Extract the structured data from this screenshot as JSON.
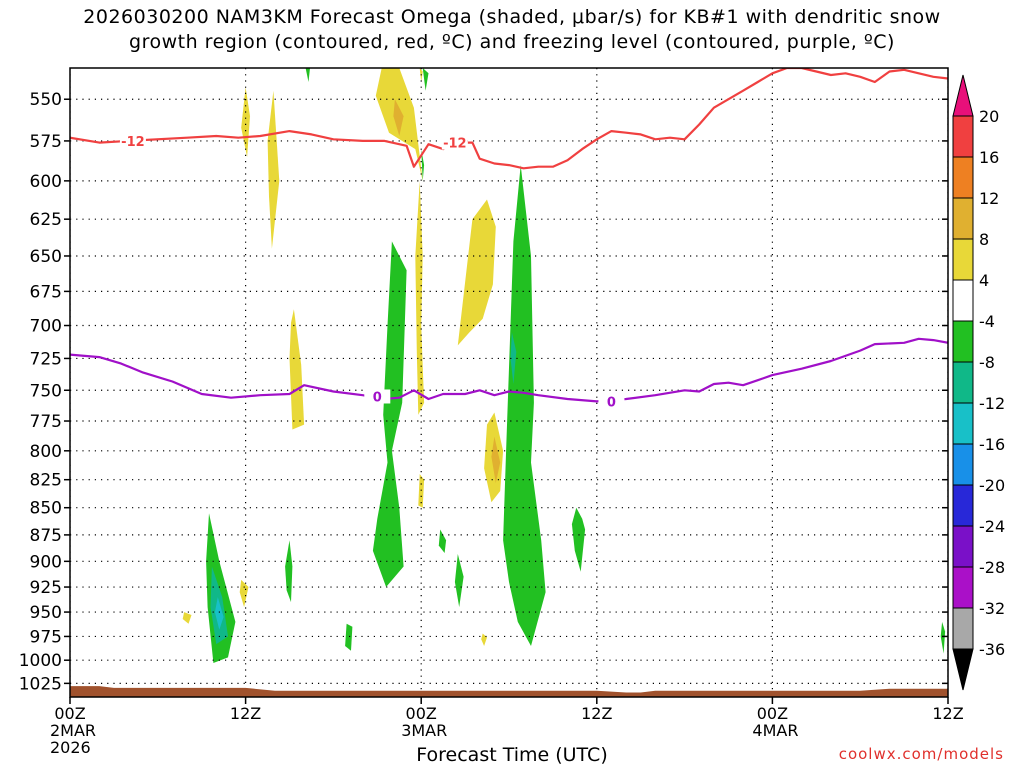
{
  "title": {
    "line1": "2026030200 NAM3KM Forecast Omega (shaded, μbar/s) for KB#1 with dendritic snow",
    "line2": "growth region (contoured, red, ºC) and freezing level (contoured, purple, ºC)"
  },
  "credit": "coolwx.com/models",
  "chart_data": {
    "type": "heatmap",
    "xlabel": "Forecast Time (UTC)",
    "x_unit": "forecast hours from 2026-03-02 00Z",
    "xlim": [
      0,
      60
    ],
    "x_ticks": [
      {
        "hour": 0,
        "labels": [
          "00Z",
          "2MAR",
          "2026"
        ]
      },
      {
        "hour": 12,
        "labels": [
          "12Z"
        ]
      },
      {
        "hour": 24,
        "labels": [
          "00Z",
          "3MAR"
        ]
      },
      {
        "hour": 36,
        "labels": [
          "12Z"
        ]
      },
      {
        "hour": 48,
        "labels": [
          "00Z",
          "4MAR"
        ]
      },
      {
        "hour": 60,
        "labels": [
          "12Z"
        ]
      }
    ],
    "ylabel": "",
    "y_unit": "hPa",
    "ylim": [
      1040,
      532
    ],
    "y_scale": "log-pressure",
    "y_ticks": [
      550,
      575,
      600,
      625,
      650,
      675,
      700,
      725,
      750,
      775,
      800,
      825,
      850,
      875,
      900,
      925,
      950,
      975,
      1000,
      1025
    ],
    "grid": true,
    "colorbar": {
      "position": "right",
      "levels": [
        20,
        16,
        12,
        8,
        4,
        -4,
        -8,
        -12,
        -16,
        -20,
        -24,
        -28,
        -32,
        -36
      ],
      "colors": [
        "#e8107a",
        "#f04040",
        "#ee8022",
        "#e0b030",
        "#e8d838",
        "#ffffff",
        "#22c022",
        "#10b888",
        "#18c0c8",
        "#1890e8",
        "#2828d8",
        "#7a10c8",
        "#aa10c8",
        "#a8a8a8",
        "#000000"
      ]
    },
    "contours": [
      {
        "label": "-12",
        "color": "#f04040",
        "points": [
          [
            0,
            573
          ],
          [
            2,
            576
          ],
          [
            4,
            575
          ],
          [
            8,
            573
          ],
          [
            10,
            572
          ],
          [
            11.5,
            573
          ],
          [
            13,
            572
          ],
          [
            15,
            569
          ],
          [
            16.5,
            571
          ],
          [
            18,
            574
          ],
          [
            20,
            575
          ],
          [
            21.5,
            575
          ],
          [
            23,
            578
          ],
          [
            23.5,
            591
          ],
          [
            24.5,
            577
          ],
          [
            25.5,
            580
          ],
          [
            26.5,
            576
          ],
          [
            27.5,
            576
          ],
          [
            28,
            586
          ],
          [
            29,
            589
          ],
          [
            30,
            590
          ],
          [
            31,
            592
          ],
          [
            32,
            591
          ],
          [
            33,
            591
          ],
          [
            34,
            587
          ],
          [
            35,
            580
          ],
          [
            36,
            574
          ],
          [
            37,
            569
          ],
          [
            38,
            570
          ],
          [
            39,
            571
          ],
          [
            40,
            574
          ],
          [
            41,
            573
          ],
          [
            42,
            574
          ],
          [
            43,
            565
          ],
          [
            44,
            555
          ],
          [
            45,
            550
          ],
          [
            46,
            545
          ],
          [
            47,
            540
          ],
          [
            48,
            535
          ],
          [
            49,
            532
          ],
          [
            50,
            532
          ],
          [
            51,
            534
          ],
          [
            52,
            536
          ],
          [
            53,
            535
          ],
          [
            54,
            537
          ],
          [
            55,
            540
          ],
          [
            56,
            534
          ],
          [
            57,
            533
          ],
          [
            58,
            535
          ],
          [
            59,
            537
          ],
          [
            60,
            538
          ]
        ],
        "label_at": [
          [
            4.3,
            575
          ],
          [
            26.3,
            576
          ]
        ]
      },
      {
        "label": "0",
        "color": "#a010c8",
        "points": [
          [
            0,
            722
          ],
          [
            2,
            724
          ],
          [
            3.5,
            729
          ],
          [
            5,
            736
          ],
          [
            7,
            743
          ],
          [
            9,
            753
          ],
          [
            11,
            756
          ],
          [
            13,
            754
          ],
          [
            15,
            753
          ],
          [
            16,
            746
          ],
          [
            18,
            751
          ],
          [
            20,
            754
          ],
          [
            21.5,
            757
          ],
          [
            22.5,
            756
          ],
          [
            23.5,
            750
          ],
          [
            24.5,
            757
          ],
          [
            25.5,
            753
          ],
          [
            27,
            753
          ],
          [
            28,
            750
          ],
          [
            29,
            754
          ],
          [
            30,
            751
          ],
          [
            31,
            752
          ],
          [
            32,
            754
          ],
          [
            34,
            757
          ],
          [
            36,
            759
          ],
          [
            38,
            757
          ],
          [
            40,
            754
          ],
          [
            42,
            750
          ],
          [
            43,
            751
          ],
          [
            44,
            745
          ],
          [
            45,
            744
          ],
          [
            46,
            746
          ],
          [
            47,
            742
          ],
          [
            48,
            738
          ],
          [
            50,
            733
          ],
          [
            52,
            727
          ],
          [
            54,
            719
          ],
          [
            55,
            714
          ],
          [
            57,
            713
          ],
          [
            58,
            710
          ],
          [
            59,
            711
          ],
          [
            60,
            713
          ]
        ],
        "label_at": [
          [
            21,
            755
          ],
          [
            37,
            759
          ]
        ]
      }
    ],
    "omega_regions": [
      {
        "value_class": "4 to 8",
        "polygons": [
          [
            [
              12,
              543
            ],
            [
              12.3,
              560
            ],
            [
              12.1,
              585
            ],
            [
              11.7,
              567
            ]
          ],
          [
            [
              13.9,
              545
            ],
            [
              14.3,
              600
            ],
            [
              13.8,
              645
            ],
            [
              13.6,
              610
            ],
            [
              13.5,
              575
            ]
          ],
          [
            [
              21.3,
              532
            ],
            [
              22.5,
              532
            ],
            [
              23.5,
              555
            ],
            [
              24.1,
              600
            ],
            [
              23.6,
              580
            ],
            [
              21.8,
              570
            ],
            [
              20.9,
              548
            ]
          ],
          [
            [
              23.9,
              600
            ],
            [
              24.1,
              650
            ],
            [
              24,
              700
            ],
            [
              24.2,
              760
            ],
            [
              23.8,
              770
            ],
            [
              23.7,
              720
            ],
            [
              23.6,
              650
            ]
          ],
          [
            [
              15.3,
              688
            ],
            [
              15.8,
              730
            ],
            [
              16,
              778
            ],
            [
              15.2,
              782
            ],
            [
              15,
              725
            ],
            [
              15.1,
              698
            ]
          ],
          [
            [
              26.5,
              715
            ],
            [
              27.5,
              625
            ],
            [
              28.5,
              612
            ],
            [
              29.1,
              630
            ],
            [
              28.9,
              670
            ],
            [
              28.2,
              695
            ],
            [
              27.3,
              705
            ]
          ],
          [
            [
              28.5,
              778
            ],
            [
              29,
              768
            ],
            [
              29.6,
              800
            ],
            [
              29.4,
              835
            ],
            [
              28.8,
              845
            ],
            [
              28.3,
              815
            ]
          ],
          [
            [
              23.9,
              820
            ],
            [
              24.2,
              825
            ],
            [
              24.1,
              850
            ],
            [
              23.8,
              848
            ]
          ],
          [
            [
              11.7,
              918
            ],
            [
              12.2,
              925
            ],
            [
              11.9,
              945
            ],
            [
              11.6,
              930
            ]
          ],
          [
            [
              7.8,
              950
            ],
            [
              8.3,
              953
            ],
            [
              8.1,
              962
            ],
            [
              7.7,
              957
            ]
          ],
          [
            [
              28.2,
              972
            ],
            [
              28.5,
              976
            ],
            [
              28.3,
              985
            ],
            [
              28.1,
              978
            ]
          ],
          [
            [
              23.9,
              532
            ],
            [
              24.1,
              534
            ],
            [
              24,
              540
            ]
          ]
        ]
      },
      {
        "value_class": "8 to 12",
        "polygons": [
          [
            [
              22.2,
              550
            ],
            [
              22.8,
              560
            ],
            [
              22.5,
              572
            ],
            [
              22.1,
              560
            ]
          ],
          [
            [
              29,
              788
            ],
            [
              29.4,
              810
            ],
            [
              29.1,
              828
            ],
            [
              28.8,
              805
            ]
          ]
        ]
      },
      {
        "value_class": "-4 to -8",
        "polygons": [
          [
            [
              16.1,
              532
            ],
            [
              16.4,
              532
            ],
            [
              16.3,
              540
            ]
          ],
          [
            [
              24.1,
              532
            ],
            [
              24.5,
              535
            ],
            [
              24.3,
              545
            ]
          ],
          [
            [
              22,
              640
            ],
            [
              23,
              660
            ],
            [
              22.7,
              760
            ],
            [
              22,
              800
            ],
            [
              22.5,
              850
            ],
            [
              22.8,
              905
            ],
            [
              21.6,
              925
            ],
            [
              20.7,
              890
            ],
            [
              21,
              860
            ],
            [
              21.7,
              810
            ],
            [
              21.4,
              770
            ],
            [
              21.7,
              700
            ]
          ],
          [
            [
              29.8,
              800
            ],
            [
              30.3,
              640
            ],
            [
              30.8,
              590
            ],
            [
              31.5,
              650
            ],
            [
              31.7,
              760
            ],
            [
              31.5,
              810
            ],
            [
              32.2,
              880
            ],
            [
              32.5,
              930
            ],
            [
              31.5,
              985
            ],
            [
              30.6,
              960
            ],
            [
              30,
              920
            ],
            [
              29.6,
              880
            ]
          ],
          [
            [
              9.5,
              855
            ],
            [
              10.2,
              900
            ],
            [
              11.3,
              960
            ],
            [
              10.8,
              997
            ],
            [
              9.8,
              1003
            ],
            [
              9.4,
              945
            ],
            [
              9.3,
              900
            ]
          ],
          [
            [
              15,
              880
            ],
            [
              15.2,
              905
            ],
            [
              15.1,
              940
            ],
            [
              14.8,
              928
            ],
            [
              14.7,
              905
            ]
          ],
          [
            [
              34.6,
              850
            ],
            [
              35,
              860
            ],
            [
              35.2,
              870
            ],
            [
              34.9,
              910
            ],
            [
              34.5,
              890
            ],
            [
              34.3,
              865
            ]
          ],
          [
            [
              26.5,
              893
            ],
            [
              26.9,
              915
            ],
            [
              26.6,
              945
            ],
            [
              26.3,
              920
            ]
          ],
          [
            [
              25.3,
              870
            ],
            [
              25.7,
              880
            ],
            [
              25.6,
              892
            ],
            [
              25.2,
              885
            ]
          ],
          [
            [
              18.9,
              962
            ],
            [
              19.3,
              965
            ],
            [
              19.2,
              990
            ],
            [
              18.8,
              985
            ]
          ],
          [
            [
              59.6,
              960
            ],
            [
              59.8,
              970
            ],
            [
              59.7,
              993
            ],
            [
              59.5,
              975
            ]
          ],
          [
            [
              24,
              580
            ],
            [
              24.2,
              590
            ],
            [
              24.1,
              600
            ]
          ]
        ]
      },
      {
        "value_class": "-8 to -12",
        "polygons": [
          [
            [
              9.7,
              905
            ],
            [
              10.4,
              935
            ],
            [
              10.8,
              975
            ],
            [
              10,
              983
            ],
            [
              9.6,
              945
            ]
          ],
          [
            [
              30.2,
              705
            ],
            [
              30.5,
              720
            ],
            [
              30.3,
              745
            ],
            [
              30.1,
              725
            ]
          ]
        ]
      },
      {
        "value_class": "-12 to -16",
        "polygons": [
          [
            [
              10.1,
              935
            ],
            [
              10.5,
              955
            ],
            [
              10.2,
              968
            ],
            [
              9.9,
              950
            ]
          ]
        ]
      }
    ],
    "terrain": {
      "color": "#a0522d",
      "surface_pressure": [
        [
          0,
          1028
        ],
        [
          2,
          1028
        ],
        [
          3,
          1030
        ],
        [
          12,
          1030
        ],
        [
          14,
          1033
        ],
        [
          36,
          1033
        ],
        [
          38,
          1035
        ],
        [
          39,
          1035
        ],
        [
          40,
          1033
        ],
        [
          48,
          1033
        ],
        [
          54,
          1033
        ],
        [
          56,
          1031
        ],
        [
          60,
          1031
        ]
      ]
    }
  }
}
